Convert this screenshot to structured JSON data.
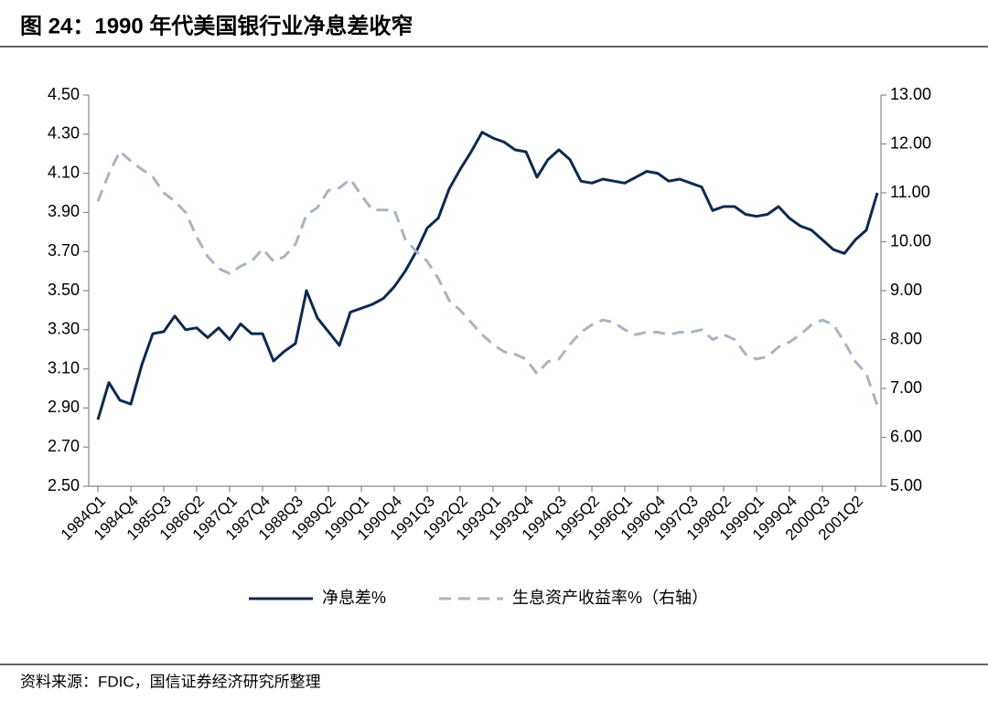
{
  "chart_data": {
    "type": "line",
    "title": "图 24：1990 年代美国银行业净息差收窄",
    "source": "资料来源：FDIC，国信证券经济研究所整理",
    "categories": [
      "1984Q1",
      null,
      null,
      "1984Q4",
      null,
      null,
      "1985Q3",
      null,
      null,
      "1986Q2",
      null,
      null,
      "1987Q1",
      null,
      null,
      "1987Q4",
      null,
      null,
      "1988Q3",
      null,
      null,
      "1989Q2",
      null,
      null,
      "1990Q1",
      null,
      null,
      "1990Q4",
      null,
      null,
      "1991Q3",
      null,
      null,
      "1992Q2",
      null,
      null,
      "1993Q1",
      null,
      null,
      "1993Q4",
      null,
      null,
      "1994Q3",
      null,
      null,
      "1995Q2",
      null,
      null,
      "1996Q1",
      null,
      null,
      "1996Q4",
      null,
      null,
      "1997Q3",
      null,
      null,
      "1998Q2",
      null,
      null,
      "1999Q1",
      null,
      null,
      "1999Q4",
      null,
      null,
      "2000Q3",
      null,
      null,
      "2001Q2",
      null,
      null
    ],
    "series": [
      {
        "name": "净息差%",
        "color": "#0d2a4f",
        "dash": false,
        "axis": "y",
        "values": [
          2.84,
          3.03,
          2.94,
          2.92,
          3.12,
          3.28,
          3.29,
          3.37,
          3.3,
          3.31,
          3.26,
          3.31,
          3.25,
          3.33,
          3.28,
          3.28,
          3.14,
          3.19,
          3.23,
          3.5,
          3.36,
          3.29,
          3.22,
          3.39,
          3.41,
          3.43,
          3.46,
          3.52,
          3.6,
          3.7,
          3.82,
          3.87,
          4.02,
          4.12,
          4.21,
          4.31,
          4.28,
          4.26,
          4.22,
          4.21,
          4.08,
          4.17,
          4.22,
          4.17,
          4.06,
          4.05,
          4.07,
          4.06,
          4.05,
          4.08,
          4.11,
          4.1,
          4.06,
          4.07,
          4.05,
          4.03,
          3.91,
          3.93,
          3.93,
          3.89,
          3.88,
          3.89,
          3.93,
          3.87,
          3.83,
          3.81,
          3.76,
          3.71,
          3.69,
          3.76,
          3.81,
          4.0
        ]
      },
      {
        "name": "生息资产收益率%（右轴）",
        "color": "#a9b5c3",
        "dash": true,
        "axis": "y2",
        "values": [
          10.83,
          11.39,
          11.85,
          11.65,
          11.48,
          11.33,
          11.0,
          10.83,
          10.6,
          10.1,
          9.7,
          9.45,
          9.35,
          9.5,
          9.6,
          9.85,
          9.6,
          9.7,
          9.95,
          10.55,
          10.7,
          11.05,
          11.1,
          11.28,
          10.95,
          10.65,
          10.65,
          10.65,
          10.05,
          9.8,
          9.6,
          9.25,
          8.8,
          8.6,
          8.35,
          8.1,
          7.9,
          7.75,
          7.7,
          7.6,
          7.3,
          7.55,
          7.6,
          7.9,
          8.15,
          8.3,
          8.4,
          8.35,
          8.2,
          8.1,
          8.15,
          8.15,
          8.1,
          8.15,
          8.15,
          8.2,
          8.0,
          8.1,
          8.0,
          7.7,
          7.6,
          7.65,
          7.85,
          7.95,
          8.1,
          8.3,
          8.4,
          8.3,
          7.95,
          7.55,
          7.3,
          6.65
        ]
      }
    ],
    "ylim": [
      2.5,
      4.5
    ],
    "yticks": [
      {
        "value": 2.5,
        "label": "2.50"
      },
      {
        "value": 2.7,
        "label": "2.70"
      },
      {
        "value": 2.9,
        "label": "2.90"
      },
      {
        "value": 3.1,
        "label": "3.10"
      },
      {
        "value": 3.3,
        "label": "3.30"
      },
      {
        "value": 3.5,
        "label": "3.50"
      },
      {
        "value": 3.7,
        "label": "3.70"
      },
      {
        "value": 3.9,
        "label": "3.90"
      },
      {
        "value": 4.1,
        "label": "4.10"
      },
      {
        "value": 4.3,
        "label": "4.30"
      },
      {
        "value": 4.5,
        "label": "4.50"
      }
    ],
    "y2lim": [
      5,
      13
    ],
    "y2ticks": [
      {
        "value": 5,
        "label": "5.00"
      },
      {
        "value": 6,
        "label": "6.00"
      },
      {
        "value": 7,
        "label": "7.00"
      },
      {
        "value": 8,
        "label": "8.00"
      },
      {
        "value": 9,
        "label": "9.00"
      },
      {
        "value": 10,
        "label": "10.00"
      },
      {
        "value": 11,
        "label": "11.00"
      },
      {
        "value": 12,
        "label": "12.00"
      },
      {
        "value": 13,
        "label": "13.00"
      }
    ],
    "legend": "bottom",
    "grid": false
  }
}
